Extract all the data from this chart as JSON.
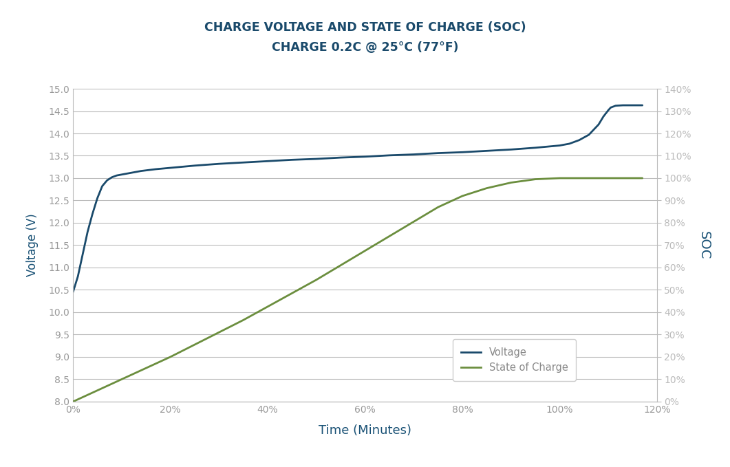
{
  "title_line1": "CHARGE VOLTAGE AND STATE OF CHARGE (SOC)",
  "title_line2": "CHARGE 0.2C @ 25°C (77°F)",
  "xlabel": "Time (Minutes)",
  "ylabel_left": "Voltage (V)",
  "ylabel_right": "SOC",
  "title_color": "#1a4a6b",
  "title_fontsize": 12.5,
  "axis_label_color": "#1a5276",
  "axis_label_fontsize": 12,
  "tick_color": "#999999",
  "tick_fontsize": 10,
  "grid_color": "#bbbbbb",
  "voltage_color": "#1a4a6b",
  "soc_color": "#6b8e3e",
  "legend_voltage": "Voltage",
  "legend_soc": "State of Charge",
  "legend_text_color": "#888888",
  "xlim": [
    0,
    1.18
  ],
  "ylim_left": [
    8.0,
    15.0
  ],
  "ylim_right": [
    0,
    140
  ],
  "xticks": [
    0.0,
    0.2,
    0.4,
    0.6,
    0.8,
    1.0,
    1.2
  ],
  "yticks_left": [
    8.0,
    8.5,
    9.0,
    9.5,
    10.0,
    10.5,
    11.0,
    11.5,
    12.0,
    12.5,
    13.0,
    13.5,
    14.0,
    14.5,
    15.0
  ],
  "yticks_right": [
    0,
    10,
    20,
    30,
    40,
    50,
    60,
    70,
    80,
    90,
    100,
    110,
    120,
    130,
    140
  ],
  "voltage_x": [
    0.0,
    0.01,
    0.02,
    0.03,
    0.04,
    0.05,
    0.06,
    0.07,
    0.08,
    0.09,
    0.1,
    0.12,
    0.14,
    0.17,
    0.2,
    0.25,
    0.3,
    0.35,
    0.4,
    0.45,
    0.5,
    0.55,
    0.6,
    0.65,
    0.7,
    0.75,
    0.8,
    0.85,
    0.9,
    0.95,
    1.0,
    1.02,
    1.04,
    1.06,
    1.08,
    1.09,
    1.1,
    1.105,
    1.115,
    1.13,
    1.15,
    1.17
  ],
  "voltage_y": [
    10.45,
    10.8,
    11.3,
    11.8,
    12.2,
    12.55,
    12.82,
    12.95,
    13.02,
    13.06,
    13.08,
    13.12,
    13.16,
    13.2,
    13.23,
    13.28,
    13.32,
    13.35,
    13.38,
    13.41,
    13.43,
    13.46,
    13.48,
    13.51,
    13.53,
    13.56,
    13.58,
    13.61,
    13.64,
    13.68,
    13.73,
    13.77,
    13.85,
    13.97,
    14.2,
    14.38,
    14.52,
    14.58,
    14.62,
    14.63,
    14.63,
    14.63
  ],
  "soc_x": [
    0.0,
    0.05,
    0.1,
    0.15,
    0.2,
    0.25,
    0.3,
    0.35,
    0.4,
    0.45,
    0.5,
    0.55,
    0.6,
    0.65,
    0.7,
    0.75,
    0.8,
    0.85,
    0.9,
    0.95,
    1.0,
    1.05,
    1.1,
    1.15,
    1.17
  ],
  "soc_pct": [
    0.0,
    5.0,
    10.0,
    15.0,
    20.0,
    25.5,
    31.0,
    36.5,
    42.5,
    48.5,
    54.5,
    61.0,
    67.5,
    74.0,
    80.5,
    87.0,
    92.0,
    95.5,
    98.0,
    99.5,
    100.0,
    100.0,
    100.0,
    100.0,
    100.0
  ]
}
